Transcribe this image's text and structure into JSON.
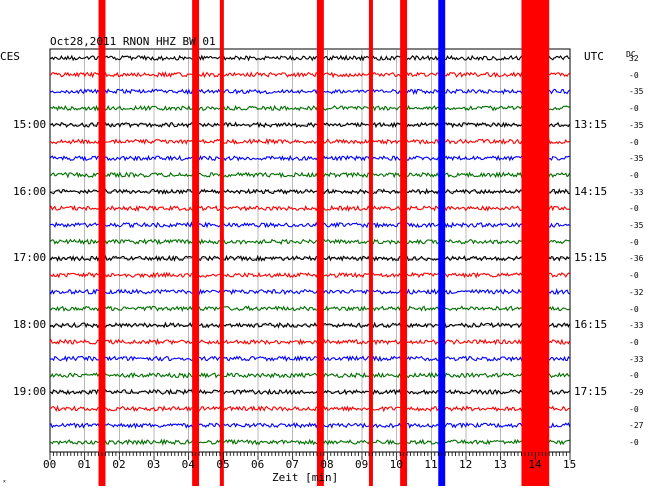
{
  "chart_data": {
    "type": "line",
    "title": "Oct28,2011  RNON HHZ BW 01",
    "left_label": "CES",
    "right_label": "UTC",
    "dc_label": "DC",
    "xlabel": "Zeit [min]",
    "xlim": [
      0,
      15
    ],
    "x_ticks": [
      "00",
      "01",
      "02",
      "03",
      "04",
      "05",
      "06",
      "07",
      "08",
      "09",
      "10",
      "11",
      "12",
      "13",
      "14",
      "15"
    ],
    "left_hour_labels": [
      "15:00",
      "16:00",
      "17:00",
      "18:00",
      "19:00"
    ],
    "right_hour_labels": [
      "13:15",
      "14:15",
      "15:15",
      "16:15",
      "17:15"
    ],
    "hour_label_rows": [
      4,
      8,
      12,
      16,
      20
    ],
    "trace_count": 24,
    "trace_colors": [
      "#000000",
      "#ff0000",
      "#0000ff",
      "#007000"
    ],
    "dc_offsets": [
      "32",
      "-0",
      "-35",
      "-0",
      "-35",
      "-0",
      "-35",
      "-0",
      "-33",
      "-0",
      "-35",
      "-0",
      "-36",
      "-0",
      "-32",
      "-0",
      "-33",
      "-0",
      "-33",
      "-0",
      "-29",
      "-0",
      "-27",
      "-0"
    ],
    "red_bands": [
      [
        1.4,
        1.6
      ],
      [
        4.1,
        4.3
      ],
      [
        4.9,
        5.0
      ],
      [
        7.7,
        7.9
      ],
      [
        9.2,
        9.3
      ],
      [
        10.1,
        10.3
      ],
      [
        13.6,
        14.4
      ]
    ],
    "blue_bands": [
      [
        11.2,
        11.4
      ]
    ],
    "corner_mark": "ˣ"
  }
}
